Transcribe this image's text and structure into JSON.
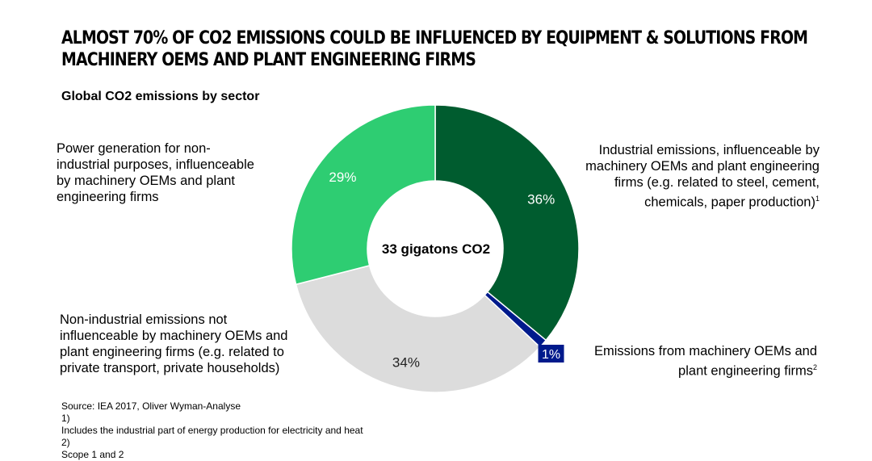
{
  "title_lines": [
    "Almost 70% of CO2 emissions could be influenced by equipment & solutions from",
    "machinery OEMs and plant engineering firms"
  ],
  "subtitle": "Global CO2 emissions by sector",
  "center_label": "33 gigatons CO2",
  "chart_data": {
    "type": "pie",
    "variant": "donut",
    "title": "Global CO2 emissions by sector",
    "total": "33 gigatons CO2",
    "slices": [
      {
        "label": "Industrial emissions, influenceable by machinery OEMs and plant engineering firms (e.g. related to steel, cement, chemicals, paper production)",
        "value": 36,
        "display": "36%",
        "color": "#005c2f"
      },
      {
        "label": "Emissions from machinery OEMs and plant engineering firms",
        "value": 1,
        "display": "1%",
        "color": "#001a8c"
      },
      {
        "label": "Non-industrial emissions not influenceable by machinery OEMs and plant engineering firms (e.g. related to private transport, private households)",
        "value": 34,
        "display": "34%",
        "color": "#dcdcdc"
      },
      {
        "label": "Power generation for non-industrial purposes, influenceable by machinery OEMs and plant engineering firms",
        "value": 29,
        "display": "29%",
        "color": "#2ecd72"
      }
    ]
  },
  "labels": {
    "industrial": {
      "lines": [
        "Industrial emissions, influenceable by",
        "machinery OEMs and plant engineering",
        "firms (e.g. related to steel, cement,",
        "chemicals, paper production)"
      ],
      "sup": "1"
    },
    "oems": {
      "lines": [
        "Emissions from machinery OEMs and",
        "plant engineering firms"
      ],
      "sup": "2"
    },
    "non_industrial": {
      "lines": [
        "Non-industrial emissions not",
        "influenceable by machinery OEMs and",
        "plant engineering firms (e.g. related to",
        "private transport, private households)"
      ]
    },
    "power": {
      "lines": [
        "Power generation for non-",
        "industrial purposes, influenceable",
        "by machinery OEMs and plant",
        "engineering firms"
      ]
    }
  },
  "footer": {
    "source": "Source: IEA 2017, Oliver Wyman-Analyse",
    "notes": [
      {
        "num": "1)",
        "text": "Includes the industrial part of energy production for electricity and heat"
      },
      {
        "num": "2)",
        "text": "Scope 1 and 2"
      }
    ]
  }
}
